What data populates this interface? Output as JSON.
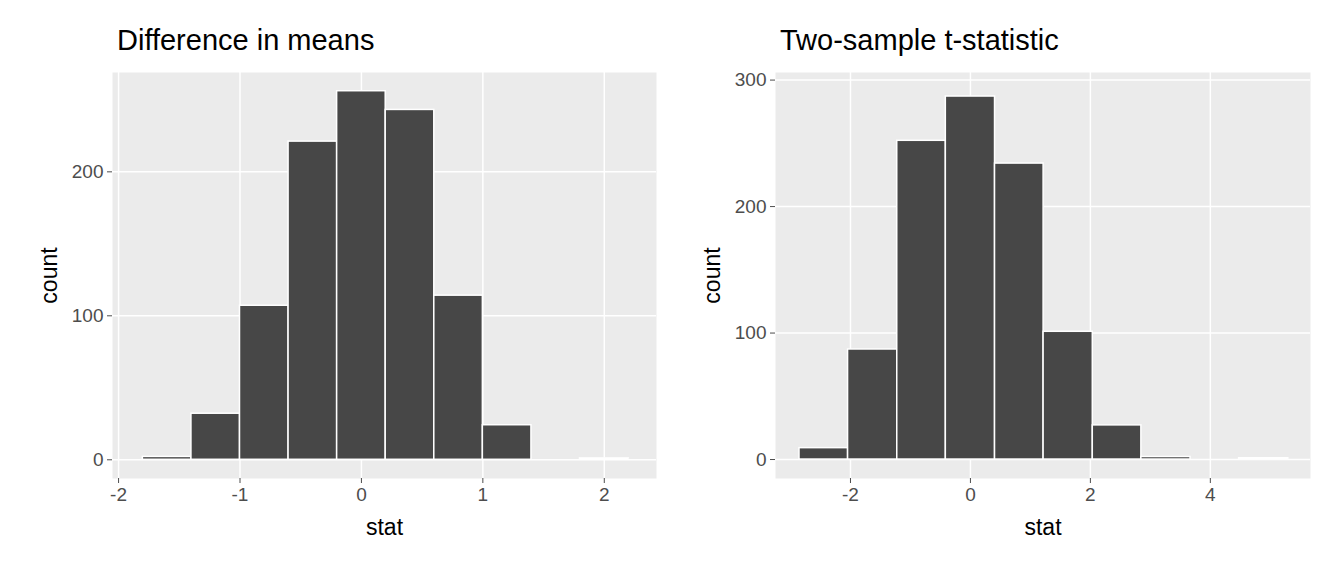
{
  "chart_data": [
    {
      "type": "histogram",
      "title": "Difference in means",
      "x_label": "stat",
      "y_label": "count",
      "bins": [
        -1.8,
        -1.4,
        -1.0,
        -0.6,
        -0.2,
        0.2,
        0.6,
        1.0,
        1.4,
        1.8,
        2.2
      ],
      "values": [
        2,
        32,
        107,
        221,
        256,
        243,
        114,
        24,
        0,
        1
      ],
      "color": "#474747",
      "xlim": [
        -2.05,
        2.43
      ],
      "ylim": [
        -13,
        269
      ],
      "xticks": [
        -2,
        -1,
        0,
        1,
        2
      ],
      "yticks": [
        0,
        100,
        200
      ],
      "grid": true
    },
    {
      "type": "histogram",
      "title": "Two-sample t-statistic",
      "x_label": "stat",
      "y_label": "count",
      "bins": [
        -2.85,
        -2.04,
        -1.22,
        -0.41,
        0.41,
        1.22,
        2.04,
        2.85,
        3.67,
        4.48,
        5.3
      ],
      "values": [
        9,
        87,
        252,
        287,
        234,
        101,
        27,
        2,
        0,
        1
      ],
      "color": "#474747",
      "xlim": [
        -3.25,
        5.67
      ],
      "ylim": [
        -15,
        306
      ],
      "xticks": [
        -2,
        0,
        2,
        4
      ],
      "yticks": [
        0,
        100,
        200,
        300
      ],
      "grid": true
    }
  ]
}
